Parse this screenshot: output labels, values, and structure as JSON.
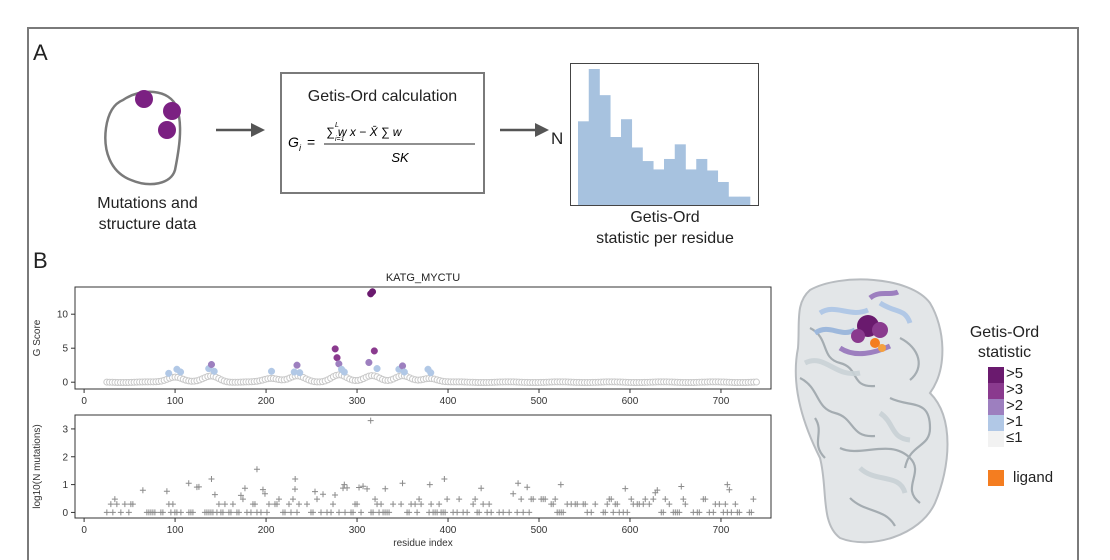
{
  "panel_a": {
    "letter": "A",
    "step1_label_line1": "Mutations and",
    "step1_label_line2": "structure data",
    "calc_title": "Getis-Ord calculation",
    "formula_lhs": "G",
    "formula_lhs_sub": "i",
    "formula_numerator": "∑ w x − X̄ ∑ w",
    "formula_sum_sup": "L",
    "formula_sum_sub": "i=1",
    "formula_w_sub": "i,j",
    "formula_x_sub": "i",
    "formula_denominator": "SK",
    "hist_axis_label": "N",
    "hist_caption_line1": "Getis-Ord",
    "hist_caption_line2": "statistic per residue",
    "hist_bars": [
      8,
      13,
      10.5,
      6.5,
      8.2,
      5.5,
      4.2,
      3.4,
      4.4,
      5.8,
      3.4,
      4.4,
      3.3,
      2.2,
      0.8,
      0.8
    ],
    "mutation_color": "#7b2082",
    "hist_color": "#a7c2df"
  },
  "panel_b": {
    "letter": "B",
    "structure_name": "KATG_MYCTU",
    "legend_title_line1": "Getis-Ord",
    "legend_title_line2": "statistic",
    "legend_items": [
      {
        "label": ">5",
        "color": "#6a1a6e"
      },
      {
        "label": ">3",
        "color": "#8a3a8e"
      },
      {
        "label": ">2",
        "color": "#9d7fbf"
      },
      {
        "label": ">1",
        "color": "#b1c8e6"
      },
      {
        "label": "≤1",
        "color": "#f2f2f2"
      }
    ],
    "ligand_label": "ligand",
    "ligand_color": "#f47d20"
  },
  "chart_data": [
    {
      "type": "scatter",
      "title": "KATG_MYCTU",
      "xlabel": "",
      "ylabel": "G Score",
      "xlim": [
        -10,
        755
      ],
      "ylim": [
        -1,
        14
      ],
      "xticks": [
        0,
        100,
        200,
        300,
        400,
        500,
        600,
        700
      ],
      "yticks": [
        0,
        5,
        10
      ],
      "baseline_range": [
        25,
        740
      ],
      "highlighted": [
        {
          "x": 93,
          "y": 1.3
        },
        {
          "x": 102,
          "y": 1.9
        },
        {
          "x": 106,
          "y": 1.5
        },
        {
          "x": 137,
          "y": 2.0
        },
        {
          "x": 140,
          "y": 2.6
        },
        {
          "x": 143,
          "y": 1.6
        },
        {
          "x": 206,
          "y": 1.6
        },
        {
          "x": 231,
          "y": 1.5
        },
        {
          "x": 234,
          "y": 2.5
        },
        {
          "x": 237,
          "y": 1.4
        },
        {
          "x": 276,
          "y": 4.9
        },
        {
          "x": 278,
          "y": 3.6
        },
        {
          "x": 280,
          "y": 2.7
        },
        {
          "x": 283,
          "y": 1.9
        },
        {
          "x": 286,
          "y": 1.5
        },
        {
          "x": 313,
          "y": 2.9
        },
        {
          "x": 315,
          "y": 13.0
        },
        {
          "x": 317,
          "y": 13.3
        },
        {
          "x": 319,
          "y": 4.6
        },
        {
          "x": 322,
          "y": 2.0
        },
        {
          "x": 346,
          "y": 1.9
        },
        {
          "x": 350,
          "y": 2.4
        },
        {
          "x": 352,
          "y": 1.5
        },
        {
          "x": 378,
          "y": 1.9
        },
        {
          "x": 381,
          "y": 1.4
        }
      ]
    },
    {
      "type": "scatter",
      "title": "",
      "xlabel": "residue index",
      "ylabel": "log10(N mutations)",
      "xlim": [
        -10,
        755
      ],
      "ylim": [
        -0.2,
        3.5
      ],
      "xticks": [
        0,
        100,
        200,
        300,
        400,
        500,
        600,
        700
      ],
      "yticks": [
        0,
        1,
        2,
        3
      ],
      "range": [
        25,
        740
      ],
      "outliers": [
        {
          "x": 315,
          "y": 3.3
        },
        {
          "x": 190,
          "y": 1.55
        },
        {
          "x": 115,
          "y": 1.05
        },
        {
          "x": 140,
          "y": 1.2
        },
        {
          "x": 232,
          "y": 1.2
        },
        {
          "x": 286,
          "y": 1.0
        },
        {
          "x": 350,
          "y": 1.05
        },
        {
          "x": 380,
          "y": 1.0
        },
        {
          "x": 396,
          "y": 1.2
        },
        {
          "x": 477,
          "y": 1.05
        },
        {
          "x": 524,
          "y": 1.0
        },
        {
          "x": 707,
          "y": 1.0
        },
        {
          "x": 331,
          "y": 0.85
        }
      ]
    }
  ]
}
